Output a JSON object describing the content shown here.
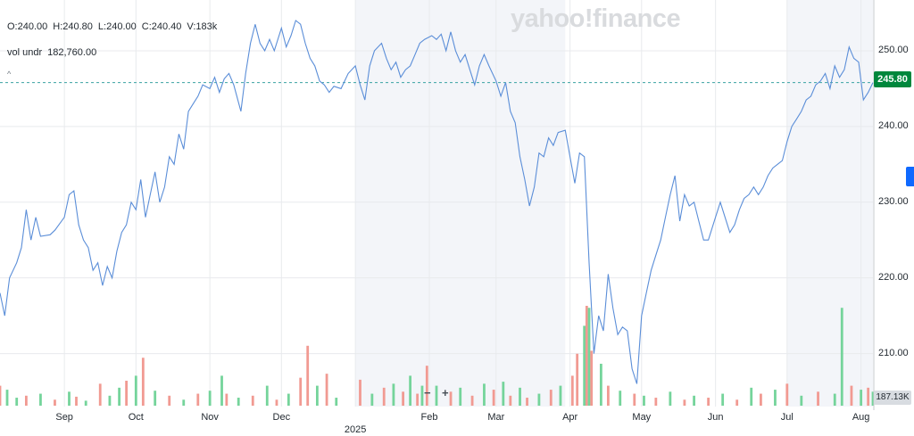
{
  "header": {
    "open": "O:240.00",
    "high": "H:240.80",
    "low": "L:240.00",
    "close": "C:240.40",
    "volume": "V:183k",
    "vol_undr_label": "vol undr",
    "vol_undr_value": "182,760.00",
    "caret": "^"
  },
  "logo": "yahoo!finance",
  "price_tag": "245.80",
  "volume_tag": "187.13K",
  "zoom_out": "−",
  "zoom_in": "+",
  "colors": {
    "line": "#5b8ed8",
    "vol_up": "#75d49b",
    "vol_down": "#f19a92",
    "price_tag": "#00873c",
    "shade": "#f3f5f9",
    "grid": "#e8eaed"
  },
  "chart_data": {
    "type": "line",
    "title": "",
    "xlabel": "",
    "ylabel": "",
    "ylim": [
      203,
      256
    ],
    "y_ticks": [
      "250.00",
      "240.00",
      "230.00",
      "220.00",
      "210.00"
    ],
    "x_tick_labels": [
      "Sep",
      "Oct",
      "Nov",
      "Dec",
      "Feb",
      "Mar",
      "Apr",
      "May",
      "Jun",
      "Jul",
      "Aug"
    ],
    "year_label": "2025",
    "reference_line": 245.8,
    "price": [
      [
        "2024-08-05",
        218
      ],
      [
        "2024-08-07",
        215
      ],
      [
        "2024-08-09",
        220
      ],
      [
        "2024-08-12",
        222
      ],
      [
        "2024-08-14",
        224
      ],
      [
        "2024-08-16",
        229
      ],
      [
        "2024-08-18",
        225
      ],
      [
        "2024-08-20",
        228
      ],
      [
        "2024-08-22",
        225.5
      ],
      [
        "2024-08-26",
        225.7
      ],
      [
        "2024-08-28",
        226.3
      ],
      [
        "2024-09-01",
        228
      ],
      [
        "2024-09-03",
        231
      ],
      [
        "2024-09-05",
        231.5
      ],
      [
        "2024-09-07",
        227
      ],
      [
        "2024-09-09",
        225
      ],
      [
        "2024-09-11",
        224
      ],
      [
        "2024-09-13",
        221
      ],
      [
        "2024-09-15",
        222
      ],
      [
        "2024-09-17",
        219
      ],
      [
        "2024-09-19",
        221.5
      ],
      [
        "2024-09-21",
        220
      ],
      [
        "2024-09-23",
        223.5
      ],
      [
        "2024-09-25",
        226
      ],
      [
        "2024-09-27",
        227
      ],
      [
        "2024-09-29",
        230
      ],
      [
        "2024-10-01",
        229
      ],
      [
        "2024-10-03",
        233
      ],
      [
        "2024-10-05",
        228
      ],
      [
        "2024-10-07",
        231
      ],
      [
        "2024-10-09",
        234
      ],
      [
        "2024-10-11",
        230
      ],
      [
        "2024-10-13",
        232
      ],
      [
        "2024-10-15",
        236
      ],
      [
        "2024-10-17",
        235
      ],
      [
        "2024-10-19",
        239
      ],
      [
        "2024-10-21",
        237
      ],
      [
        "2024-10-23",
        242
      ],
      [
        "2024-10-25",
        243
      ],
      [
        "2024-10-27",
        244
      ],
      [
        "2024-10-29",
        245.5
      ],
      [
        "2024-11-01",
        245
      ],
      [
        "2024-11-03",
        246.5
      ],
      [
        "2024-11-05",
        244.5
      ],
      [
        "2024-11-07",
        246.3
      ],
      [
        "2024-11-09",
        247
      ],
      [
        "2024-11-11",
        245.5
      ],
      [
        "2024-11-14",
        242
      ],
      [
        "2024-11-16",
        247
      ],
      [
        "2024-11-18",
        251
      ],
      [
        "2024-11-20",
        253.5
      ],
      [
        "2024-11-22",
        251
      ],
      [
        "2024-11-24",
        250
      ],
      [
        "2024-11-26",
        251.5
      ],
      [
        "2024-11-28",
        250
      ],
      [
        "2024-12-01",
        253
      ],
      [
        "2024-12-03",
        250.5
      ],
      [
        "2024-12-05",
        252
      ],
      [
        "2024-12-07",
        254
      ],
      [
        "2024-12-09",
        253.5
      ],
      [
        "2024-12-11",
        251
      ],
      [
        "2024-12-13",
        249
      ],
      [
        "2024-12-15",
        248
      ],
      [
        "2024-12-17",
        246
      ],
      [
        "2024-12-19",
        245.5
      ],
      [
        "2024-12-21",
        244.5
      ],
      [
        "2024-12-23",
        245.3
      ],
      [
        "2024-12-26",
        245
      ],
      [
        "2024-12-29",
        247
      ],
      [
        "2025-01-01",
        248
      ],
      [
        "2025-01-03",
        245.5
      ],
      [
        "2025-01-05",
        243.5
      ],
      [
        "2025-01-07",
        248
      ],
      [
        "2025-01-09",
        250
      ],
      [
        "2025-01-12",
        251
      ],
      [
        "2025-01-14",
        249
      ],
      [
        "2025-01-16",
        247.5
      ],
      [
        "2025-01-18",
        248.5
      ],
      [
        "2025-01-20",
        246.5
      ],
      [
        "2025-01-22",
        247.5
      ],
      [
        "2025-01-24",
        248
      ],
      [
        "2025-01-26",
        249.5
      ],
      [
        "2025-01-28",
        251
      ],
      [
        "2025-01-30",
        251.5
      ],
      [
        "2025-02-02",
        252
      ],
      [
        "2025-02-04",
        251.5
      ],
      [
        "2025-02-06",
        252.2
      ],
      [
        "2025-02-08",
        250
      ],
      [
        "2025-02-10",
        252.5
      ],
      [
        "2025-02-12",
        250
      ],
      [
        "2025-02-14",
        248.5
      ],
      [
        "2025-02-16",
        249.5
      ],
      [
        "2025-02-18",
        247.5
      ],
      [
        "2025-02-20",
        245.5
      ],
      [
        "2025-02-22",
        248
      ],
      [
        "2025-02-24",
        249.5
      ],
      [
        "2025-02-26",
        248
      ],
      [
        "2025-03-01",
        246
      ],
      [
        "2025-03-03",
        244
      ],
      [
        "2025-03-05",
        245.8
      ],
      [
        "2025-03-07",
        242
      ],
      [
        "2025-03-09",
        240.5
      ],
      [
        "2025-03-11",
        236
      ],
      [
        "2025-03-13",
        233
      ],
      [
        "2025-03-15",
        229.5
      ],
      [
        "2025-03-17",
        232
      ],
      [
        "2025-03-19",
        236.5
      ],
      [
        "2025-03-21",
        236
      ],
      [
        "2025-03-23",
        238.5
      ],
      [
        "2025-03-25",
        237.5
      ],
      [
        "2025-03-27",
        239.2
      ],
      [
        "2025-03-30",
        239.5
      ],
      [
        "2025-04-01",
        236
      ],
      [
        "2025-04-03",
        232.5
      ],
      [
        "2025-04-05",
        236.5
      ],
      [
        "2025-04-07",
        236
      ],
      [
        "2025-04-09",
        222
      ],
      [
        "2025-04-11",
        210
      ],
      [
        "2025-04-13",
        215
      ],
      [
        "2025-04-15",
        213
      ],
      [
        "2025-04-17",
        220.5
      ],
      [
        "2025-04-19",
        216
      ],
      [
        "2025-04-21",
        212.5
      ],
      [
        "2025-04-23",
        213.5
      ],
      [
        "2025-04-25",
        213
      ],
      [
        "2025-04-27",
        208
      ],
      [
        "2025-04-29",
        206
      ],
      [
        "2025-05-01",
        215
      ],
      [
        "2025-05-03",
        218
      ],
      [
        "2025-05-05",
        221
      ],
      [
        "2025-05-07",
        223
      ],
      [
        "2025-05-09",
        225
      ],
      [
        "2025-05-11",
        228
      ],
      [
        "2025-05-13",
        231
      ],
      [
        "2025-05-15",
        233.5
      ],
      [
        "2025-05-17",
        227.5
      ],
      [
        "2025-05-19",
        231
      ],
      [
        "2025-05-21",
        229.5
      ],
      [
        "2025-05-23",
        230
      ],
      [
        "2025-05-25",
        227.5
      ],
      [
        "2025-05-27",
        225
      ],
      [
        "2025-05-29",
        225
      ],
      [
        "2025-06-01",
        228
      ],
      [
        "2025-06-03",
        230
      ],
      [
        "2025-06-05",
        228
      ],
      [
        "2025-06-07",
        226
      ],
      [
        "2025-06-09",
        227
      ],
      [
        "2025-06-11",
        229
      ],
      [
        "2025-06-13",
        230.5
      ],
      [
        "2025-06-15",
        231
      ],
      [
        "2025-06-17",
        232
      ],
      [
        "2025-06-19",
        231
      ],
      [
        "2025-06-21",
        232
      ],
      [
        "2025-06-23",
        233.5
      ],
      [
        "2025-06-25",
        234.5
      ],
      [
        "2025-06-27",
        235
      ],
      [
        "2025-06-29",
        235.5
      ],
      [
        "2025-07-01",
        238
      ],
      [
        "2025-07-03",
        240
      ],
      [
        "2025-07-05",
        241
      ],
      [
        "2025-07-07",
        242
      ],
      [
        "2025-07-09",
        243.5
      ],
      [
        "2025-07-11",
        244
      ],
      [
        "2025-07-13",
        245.5
      ],
      [
        "2025-07-15",
        246
      ],
      [
        "2025-07-17",
        247
      ],
      [
        "2025-07-19",
        245
      ],
      [
        "2025-07-21",
        248
      ],
      [
        "2025-07-23",
        246.5
      ],
      [
        "2025-07-25",
        247.5
      ],
      [
        "2025-07-27",
        250.5
      ],
      [
        "2025-07-29",
        249
      ],
      [
        "2025-07-31",
        248.5
      ],
      [
        "2025-08-02",
        243.5
      ],
      [
        "2025-08-04",
        244.5
      ],
      [
        "2025-08-06",
        245.8
      ]
    ],
    "volume": [
      [
        "2024-08-05",
        0.2,
        "down"
      ],
      [
        "2024-08-08",
        0.16,
        "up"
      ],
      [
        "2024-08-12",
        0.08,
        "up"
      ],
      [
        "2024-08-16",
        0.1,
        "down"
      ],
      [
        "2024-08-22",
        0.12,
        "up"
      ],
      [
        "2024-08-28",
        0.06,
        "down"
      ],
      [
        "2024-09-03",
        0.14,
        "up"
      ],
      [
        "2024-09-06",
        0.09,
        "down"
      ],
      [
        "2024-09-10",
        0.05,
        "up"
      ],
      [
        "2024-09-16",
        0.22,
        "down"
      ],
      [
        "2024-09-20",
        0.1,
        "up"
      ],
      [
        "2024-09-24",
        0.18,
        "up"
      ],
      [
        "2024-09-27",
        0.25,
        "down"
      ],
      [
        "2024-10-01",
        0.3,
        "up"
      ],
      [
        "2024-10-04",
        0.48,
        "down"
      ],
      [
        "2024-10-09",
        0.15,
        "up"
      ],
      [
        "2024-10-15",
        0.1,
        "down"
      ],
      [
        "2024-10-21",
        0.06,
        "up"
      ],
      [
        "2024-10-27",
        0.12,
        "down"
      ],
      [
        "2024-11-01",
        0.15,
        "up"
      ],
      [
        "2024-11-06",
        0.3,
        "up"
      ],
      [
        "2024-11-08",
        0.12,
        "down"
      ],
      [
        "2024-11-13",
        0.08,
        "up"
      ],
      [
        "2024-11-19",
        0.1,
        "down"
      ],
      [
        "2024-11-25",
        0.2,
        "up"
      ],
      [
        "2024-11-29",
        0.06,
        "down"
      ],
      [
        "2024-12-04",
        0.12,
        "up"
      ],
      [
        "2024-12-09",
        0.28,
        "down"
      ],
      [
        "2024-12-12",
        0.6,
        "down"
      ],
      [
        "2024-12-16",
        0.2,
        "up"
      ],
      [
        "2024-12-20",
        0.32,
        "down"
      ],
      [
        "2024-12-24",
        0.08,
        "up"
      ],
      [
        "2025-01-03",
        0.26,
        "down"
      ],
      [
        "2025-01-08",
        0.12,
        "up"
      ],
      [
        "2025-01-13",
        0.18,
        "down"
      ],
      [
        "2025-01-17",
        0.22,
        "up"
      ],
      [
        "2025-01-21",
        0.14,
        "down"
      ],
      [
        "2025-01-24",
        0.3,
        "up"
      ],
      [
        "2025-01-27",
        0.12,
        "down"
      ],
      [
        "2025-01-29",
        0.2,
        "up"
      ],
      [
        "2025-01-31",
        0.4,
        "down"
      ],
      [
        "2025-02-04",
        0.2,
        "up"
      ],
      [
        "2025-02-10",
        0.14,
        "down"
      ],
      [
        "2025-02-14",
        0.18,
        "up"
      ],
      [
        "2025-02-19",
        0.1,
        "down"
      ],
      [
        "2025-02-24",
        0.22,
        "up"
      ],
      [
        "2025-02-28",
        0.16,
        "down"
      ],
      [
        "2025-03-04",
        0.24,
        "up"
      ],
      [
        "2025-03-07",
        0.1,
        "down"
      ],
      [
        "2025-03-11",
        0.18,
        "up"
      ],
      [
        "2025-03-14",
        0.08,
        "down"
      ],
      [
        "2025-03-19",
        0.12,
        "up"
      ],
      [
        "2025-03-24",
        0.16,
        "down"
      ],
      [
        "2025-03-28",
        0.2,
        "up"
      ],
      [
        "2025-04-02",
        0.3,
        "down"
      ],
      [
        "2025-04-04",
        0.52,
        "down"
      ],
      [
        "2025-04-07",
        0.8,
        "up"
      ],
      [
        "2025-04-08",
        1.0,
        "down"
      ],
      [
        "2025-04-09",
        0.98,
        "up"
      ],
      [
        "2025-04-10",
        0.55,
        "down"
      ],
      [
        "2025-04-14",
        0.42,
        "up"
      ],
      [
        "2025-04-17",
        0.2,
        "down"
      ],
      [
        "2025-04-22",
        0.15,
        "up"
      ],
      [
        "2025-04-28",
        0.12,
        "down"
      ],
      [
        "2025-05-02",
        0.1,
        "up"
      ],
      [
        "2025-05-07",
        0.08,
        "down"
      ],
      [
        "2025-05-13",
        0.14,
        "up"
      ],
      [
        "2025-05-19",
        0.06,
        "down"
      ],
      [
        "2025-05-23",
        0.1,
        "up"
      ],
      [
        "2025-05-29",
        0.08,
        "down"
      ],
      [
        "2025-06-04",
        0.12,
        "up"
      ],
      [
        "2025-06-10",
        0.06,
        "down"
      ],
      [
        "2025-06-16",
        0.18,
        "up"
      ],
      [
        "2025-06-20",
        0.12,
        "down"
      ],
      [
        "2025-06-26",
        0.16,
        "up"
      ],
      [
        "2025-07-01",
        0.22,
        "down"
      ],
      [
        "2025-07-07",
        0.1,
        "up"
      ],
      [
        "2025-07-14",
        0.14,
        "down"
      ],
      [
        "2025-07-21",
        0.12,
        "up"
      ],
      [
        "2025-07-24",
        0.98,
        "up"
      ],
      [
        "2025-07-28",
        0.2,
        "down"
      ],
      [
        "2025-08-01",
        0.16,
        "up"
      ],
      [
        "2025-08-04",
        0.18,
        "down"
      ],
      [
        "2025-08-06",
        0.14,
        "up"
      ]
    ]
  }
}
